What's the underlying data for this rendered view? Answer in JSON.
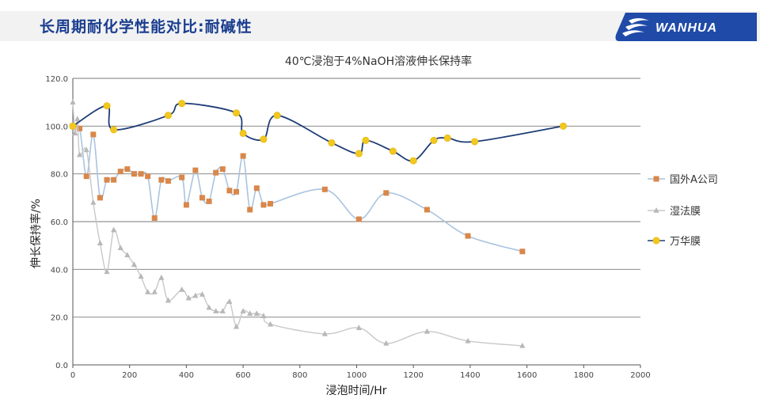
{
  "header": {
    "title": "长周期耐化学性能对比:耐碱性",
    "brand": "WANHUA"
  },
  "colors": {
    "header_title": "#1a3d8f",
    "logo_bg": "#1f4aa8",
    "series_foreign": "#a9c4df",
    "marker_foreign": "#d9874a",
    "series_wet": "#c8c8c8",
    "marker_wet": "#b8b8b8",
    "series_wanhua": "#1e3d77",
    "marker_wanhua": "#f2c81e"
  },
  "chart_data": {
    "type": "scatter",
    "title": "40℃浸泡于4%NaOH溶液伸长保持率",
    "xlabel": "浸泡时间/Hr",
    "ylabel": "伸长保持率/%",
    "xlim": [
      0,
      2000
    ],
    "ylim": [
      0,
      120
    ],
    "x_ticks": [
      "0",
      "200",
      "400",
      "600",
      "800",
      "1000",
      "1200",
      "1400",
      "1600",
      "1800",
      "2000"
    ],
    "y_ticks": [
      "0.0",
      "20.0",
      "40.0",
      "60.0",
      "80.0",
      "100.0",
      "120.0"
    ],
    "grid": "horizontal",
    "legend_position": "right",
    "series": [
      {
        "name": "国外A公司",
        "marker": "square",
        "x": [
          0,
          24,
          48,
          72,
          96,
          120,
          144,
          168,
          192,
          216,
          240,
          264,
          288,
          312,
          336,
          384,
          400,
          432,
          456,
          480,
          504,
          528,
          552,
          576,
          600,
          624,
          648,
          672,
          696,
          888,
          1008,
          1104,
          1248,
          1392,
          1584
        ],
        "y": [
          100,
          99,
          79,
          96.5,
          70,
          77.5,
          77.5,
          81,
          82,
          80,
          80,
          79,
          61.5,
          77.5,
          77,
          78.5,
          67,
          81.5,
          70,
          68.5,
          80.5,
          82,
          73,
          72.5,
          87.5,
          65,
          74,
          67,
          67.5,
          73.5,
          61,
          72,
          65,
          54,
          47.5
        ]
      },
      {
        "name": "湿法膜",
        "marker": "triangle",
        "x": [
          0,
          8,
          16,
          24,
          48,
          72,
          96,
          120,
          144,
          168,
          192,
          216,
          240,
          264,
          288,
          312,
          336,
          384,
          408,
          432,
          456,
          480,
          504,
          528,
          552,
          576,
          600,
          624,
          648,
          672,
          696,
          888,
          1008,
          1104,
          1248,
          1392,
          1584
        ],
        "y": [
          110,
          97,
          103,
          88,
          90,
          68,
          51,
          39,
          56.5,
          49,
          46,
          42,
          37,
          30.5,
          30.5,
          36.5,
          27,
          31.5,
          28,
          29,
          29.5,
          24,
          22.5,
          22.5,
          26.5,
          16,
          22.5,
          21.5,
          21.5,
          20.5,
          17,
          13,
          15.5,
          9,
          14,
          10,
          8
        ]
      },
      {
        "name": "万华膜",
        "marker": "circle",
        "x": [
          0,
          120,
          144,
          336,
          384,
          576,
          600,
          672,
          720,
          912,
          1008,
          1032,
          1128,
          1200,
          1272,
          1320,
          1416,
          1728
        ],
        "y": [
          100,
          108.5,
          98.5,
          104.5,
          109.5,
          105.5,
          97,
          94.5,
          104.5,
          93,
          88.5,
          94,
          89.5,
          85.5,
          94,
          95,
          93.5,
          100
        ]
      }
    ]
  }
}
